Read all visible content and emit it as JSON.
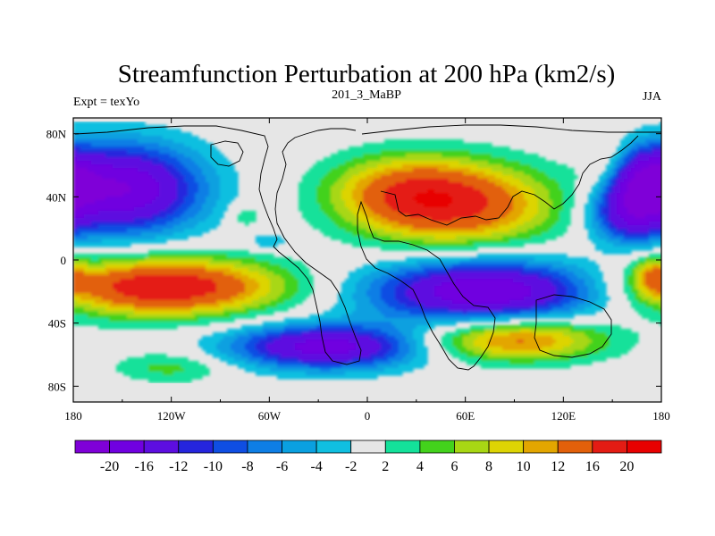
{
  "chart_data": {
    "type": "heatmap",
    "title": "Streamfunction Perturbation at 200 hPa (km2/s)",
    "subtitle_center": "201_3_MaBP",
    "subtitle_left": "Expt = texYo",
    "subtitle_right": "JJA",
    "xlim": [
      -180,
      180
    ],
    "ylim": [
      -90,
      90
    ],
    "x_ticks": [
      {
        "value": -180,
        "label": "180"
      },
      {
        "value": -120,
        "label": "120W"
      },
      {
        "value": -60,
        "label": "60W"
      },
      {
        "value": 0,
        "label": "0"
      },
      {
        "value": 60,
        "label": "60E"
      },
      {
        "value": 120,
        "label": "120E"
      },
      {
        "value": 180,
        "label": "180"
      }
    ],
    "y_ticks": [
      {
        "value": 80,
        "label": "80N"
      },
      {
        "value": 40,
        "label": "40N"
      },
      {
        "value": 0,
        "label": "0"
      },
      {
        "value": -40,
        "label": "40S"
      },
      {
        "value": -80,
        "label": "80S"
      }
    ],
    "colorbar": {
      "levels": [
        -20,
        -16,
        -12,
        -10,
        -8,
        -6,
        -4,
        -2,
        2,
        4,
        6,
        8,
        10,
        12,
        16,
        20
      ],
      "labels": [
        "-20",
        "-16",
        "-12",
        "-10",
        "-8",
        "-6",
        "-4",
        "-2",
        "2",
        "4",
        "6",
        "8",
        "10",
        "12",
        "16",
        "20"
      ],
      "colors": [
        "#7f00d8",
        "#7000e0",
        "#5d0ee0",
        "#2525dd",
        "#0f4ee3",
        "#0e7ee5",
        "#0aa0e0",
        "#10bfe0",
        "#e6e6e6",
        "#14e19a",
        "#43d21c",
        "#a8d714",
        "#ddd404",
        "#e3a600",
        "#e2600a",
        "#e41c14",
        "#e80000"
      ]
    },
    "anomaly_centers": [
      {
        "lon": -150,
        "lat": 45,
        "lon_radius": 48,
        "lat_radius": 28,
        "value": -20
      },
      {
        "lon": 168,
        "lat": 52,
        "lon_radius": 22,
        "lat_radius": 20,
        "value": -16
      },
      {
        "lon": 160,
        "lat": 28,
        "lon_radius": 24,
        "lat_radius": 18,
        "value": -12
      },
      {
        "lon": -125,
        "lat": -17,
        "lon_radius": 72,
        "lat_radius": 18,
        "value": 20
      },
      {
        "lon": 72,
        "lat": -20,
        "lon_radius": 70,
        "lat_radius": 20,
        "value": -20
      },
      {
        "lon": -25,
        "lat": -55,
        "lon_radius": 58,
        "lat_radius": 14,
        "value": -18
      },
      {
        "lon": 55,
        "lat": 35,
        "lon_radius": 60,
        "lat_radius": 26,
        "value": 16
      },
      {
        "lon": 20,
        "lat": 45,
        "lon_radius": 45,
        "lat_radius": 22,
        "value": 8
      },
      {
        "lon": 150,
        "lat": 60,
        "lon_radius": 20,
        "lat_radius": 18,
        "value": 6
      },
      {
        "lon": 90,
        "lat": -50,
        "lon_radius": 55,
        "lat_radius": 14,
        "value": 14
      },
      {
        "lon": -120,
        "lat": -68,
        "lon_radius": 35,
        "lat_radius": 10,
        "value": 5
      },
      {
        "lon": 175,
        "lat": -10,
        "lon_radius": 12,
        "lat_radius": 12,
        "value": 8
      },
      {
        "lon": -60,
        "lat": 12,
        "lon_radius": 15,
        "lat_radius": 6,
        "value": -4
      },
      {
        "lon": -75,
        "lat": 28,
        "lon_radius": 10,
        "lat_radius": 8,
        "value": 4
      }
    ]
  }
}
